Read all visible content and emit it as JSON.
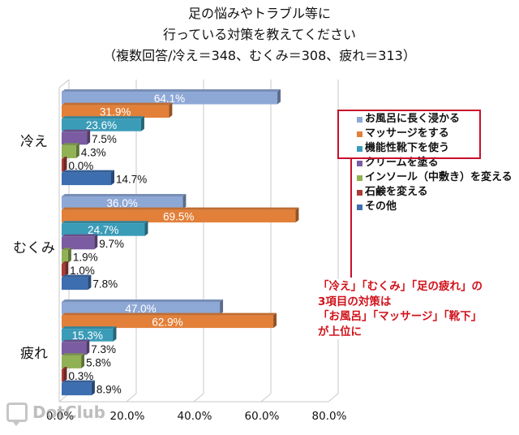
{
  "chart_data": {
    "type": "bar",
    "orientation": "horizontal",
    "title_lines": [
      "足の悩みやトラブル等に",
      "行っている対策を教えてください",
      "（複数回答/冷え＝348、むくみ＝308、疲れ＝313）"
    ],
    "categories": [
      "冷え",
      "むくみ",
      "疲れ"
    ],
    "series": [
      {
        "name": "お風呂に長く浸かる",
        "color": "#8ea8d6",
        "values": [
          64.1,
          36.0,
          47.0
        ],
        "labels": [
          "64.1%",
          "36.0%",
          "47.0%"
        ],
        "label_color": "#ffffff"
      },
      {
        "name": "マッサージをする",
        "color": "#e2803a",
        "values": [
          31.9,
          69.5,
          62.9
        ],
        "labels": [
          "31.9%",
          "69.5%",
          "62.9%"
        ],
        "label_color": "#ffffff"
      },
      {
        "name": "機能性靴下を使う",
        "color": "#3b9cb8",
        "values": [
          23.6,
          24.7,
          15.3
        ],
        "labels": [
          "23.6%",
          "24.7%",
          "15.3%"
        ],
        "label_color": "#ffffff"
      },
      {
        "name": "クリームを塗る",
        "color": "#7b5ca2",
        "values": [
          7.5,
          9.7,
          7.3
        ],
        "labels": [
          "7.5%",
          "9.7%",
          "7.3%"
        ],
        "label_color": "#111111"
      },
      {
        "name": "インソール（中敷き）を変える",
        "color": "#91b155",
        "values": [
          4.3,
          1.9,
          5.8
        ],
        "labels": [
          "4.3%",
          "1.9%",
          "5.8%"
        ],
        "label_color": "#111111"
      },
      {
        "name": "石鹸を変える",
        "color": "#a93c38",
        "values": [
          0.0,
          1.0,
          0.3
        ],
        "labels": [
          "0.0%",
          "1.0%",
          "0.3%"
        ],
        "label_color": "#111111"
      },
      {
        "name": "その他",
        "color": "#3d6fb0",
        "values": [
          14.7,
          7.8,
          8.9
        ],
        "labels": [
          "14.7%",
          "7.8%",
          "8.9%"
        ],
        "label_color": "#111111"
      }
    ],
    "xlim": [
      0,
      80
    ],
    "xticks": [
      "0.0%",
      "20.0%",
      "40.0%",
      "60.0%",
      "80.0%"
    ],
    "grid": true,
    "legend_position": "right",
    "annotation": [
      "「冷え」「むくみ」「足の疲れ」の",
      "3項目の対策は",
      "「お風呂」「マッサージ」「靴下」",
      "が上位に"
    ]
  },
  "watermark": {
    "text": "DotClub"
  }
}
